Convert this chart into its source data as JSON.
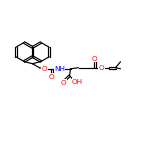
{
  "bg_color": "#ffffff",
  "bond_color": "#000000",
  "atom_colors": {
    "O": "#ff0000",
    "N": "#0000ff"
  },
  "lw": 0.85,
  "fs": 5.2
}
